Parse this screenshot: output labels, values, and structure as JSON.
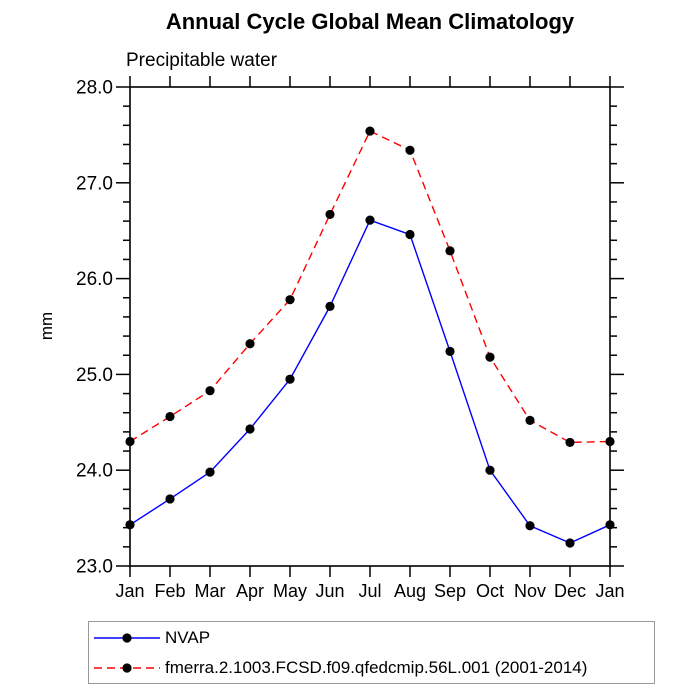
{
  "chart_data": {
    "type": "line",
    "title": "Annual Cycle Global Mean Climatology",
    "subtitle": "Precipitable water",
    "ylabel": "mm",
    "xlabel": "",
    "categories": [
      "Jan",
      "Feb",
      "Mar",
      "Apr",
      "May",
      "Jun",
      "Jul",
      "Aug",
      "Sep",
      "Oct",
      "Nov",
      "Dec",
      "Jan"
    ],
    "ylim": [
      23.0,
      28.0
    ],
    "y_major_tick_step": 1.0,
    "y_minor_tick_step": 0.2,
    "y_tick_labels": [
      "23.0",
      "24.0",
      "25.0",
      "26.0",
      "27.0",
      "28.0"
    ],
    "grid": false,
    "legend_position": "bottom-left-box",
    "frame_color": "#000000",
    "marker": "filled-circle",
    "marker_color": "#000000",
    "series": [
      {
        "name": "NVAP",
        "color": "#0000ff",
        "line_style": "solid",
        "values": [
          23.43,
          23.7,
          23.98,
          24.43,
          24.95,
          25.71,
          26.61,
          26.46,
          25.24,
          24.0,
          23.42,
          23.24,
          23.43
        ]
      },
      {
        "name": "fmerra.2.1003.FCSD.f09.qfedcmip.56L.001 (2001-2014)",
        "color": "#ff0000",
        "line_style": "dashed",
        "values": [
          24.3,
          24.56,
          24.83,
          25.32,
          25.78,
          26.67,
          27.54,
          27.34,
          26.29,
          25.18,
          24.52,
          24.29,
          24.3
        ]
      }
    ]
  }
}
